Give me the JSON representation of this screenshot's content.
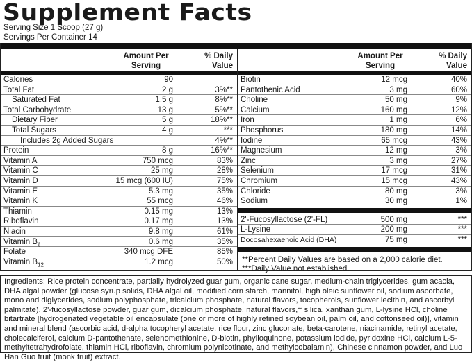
{
  "title": "Supplement Facts",
  "serving_size": "Serving Size 1 Scoop (27 g)",
  "servings_per_container": "Servings Per Container 14",
  "header": {
    "amount": "Amount Per Serving",
    "dv": "% Daily Value"
  },
  "left": [
    {
      "name": "Calories",
      "amount": "90",
      "dv": ""
    },
    {
      "name": "Total Fat",
      "amount": "2 g",
      "dv": "3%**"
    },
    {
      "name": "Saturated Fat",
      "amount": "1.5 g",
      "dv": "8%**",
      "indent": 1
    },
    {
      "name": "Total Carbohydrate",
      "amount": "13 g",
      "dv": "5%**"
    },
    {
      "name": "Dietary Fiber",
      "amount": "5 g",
      "dv": "18%**",
      "indent": 1
    },
    {
      "name": "Total Sugars",
      "amount": "4 g",
      "dv": "***",
      "indent": 1
    },
    {
      "name": "Includes 2g Added Sugars",
      "amount": "",
      "dv": "4%**",
      "indent": 2
    },
    {
      "name": "Protein",
      "amount": "8 g",
      "dv": "16%**"
    },
    {
      "name": "Vitamin A",
      "amount": "750 mcg",
      "dv": "83%"
    },
    {
      "name": "Vitamin C",
      "amount": "25 mg",
      "dv": "28%"
    },
    {
      "name": "Vitamin D",
      "amount": "15 mcg (600 IU)",
      "dv": "75%"
    },
    {
      "name": "Vitamin E",
      "amount": "5.3 mg",
      "dv": "35%"
    },
    {
      "name": "Vitamin K",
      "amount": "55 mcg",
      "dv": "46%"
    },
    {
      "name": "Thiamin",
      "amount": "0.15 mg",
      "dv": "13%"
    },
    {
      "name": "Riboflavin",
      "amount": "0.17 mg",
      "dv": "13%"
    },
    {
      "name": "Niacin",
      "amount": "9.8 mg",
      "dv": "61%"
    },
    {
      "name": "Vitamin B",
      "sub": "6",
      "amount": "0.6 mg",
      "dv": "35%"
    },
    {
      "name": "Folate",
      "amount": "340 mcg DFE",
      "dv": "85%"
    },
    {
      "name": "Vitamin B",
      "sub": "12",
      "amount": "1.2 mcg",
      "dv": "50%"
    }
  ],
  "right": [
    {
      "name": "Biotin",
      "amount": "12 mcg",
      "dv": "40%"
    },
    {
      "name": "Pantothenic Acid",
      "amount": "3 mg",
      "dv": "60%"
    },
    {
      "name": "Choline",
      "amount": "50 mg",
      "dv": "9%"
    },
    {
      "name": "Calcium",
      "amount": "160 mg",
      "dv": "12%"
    },
    {
      "name": "Iron",
      "amount": "1 mg",
      "dv": "6%"
    },
    {
      "name": "Phosphorus",
      "amount": "180 mg",
      "dv": "14%"
    },
    {
      "name": "Iodine",
      "amount": "65 mcg",
      "dv": "43%"
    },
    {
      "name": "Magnesium",
      "amount": "12 mg",
      "dv": "3%"
    },
    {
      "name": "Zinc",
      "amount": "3 mg",
      "dv": "27%"
    },
    {
      "name": "Selenium",
      "amount": "17 mcg",
      "dv": "31%"
    },
    {
      "name": "Chromium",
      "amount": "15 mcg",
      "dv": "43%"
    },
    {
      "name": "Chloride",
      "amount": "80 mg",
      "dv": "3%"
    },
    {
      "name": "Sodium",
      "amount": "30 mg",
      "dv": "1%"
    }
  ],
  "other": [
    {
      "name": "2'-Fucosyllactose (2'-FL)",
      "amount": "500 mg",
      "dv": "***"
    },
    {
      "name": "L-Lysine",
      "amount": "200 mg",
      "dv": "***"
    },
    {
      "name": "Docosahexaenoic Acid (DHA)",
      "amount": "75 mg",
      "dv": "***"
    }
  ],
  "footnotes": [
    "**Percent Daily Values are based on a 2,000 calorie diet.",
    "***Daily Value not established."
  ],
  "ingredients": "Ingredients: Rice protein concentrate, partially hydrolyzed guar gum, organic cane sugar, medium-chain triglycerides, gum acacia, DHA algal powder (glucose syrup solids, DHA algal oil, modified corn starch, mannitol, high oleic sunflower oil, sodium ascorbate, mono and diglycerides, sodium polyphosphate, tricalcium phosphate, natural flavors, tocopherols, sunflower lecithin, and ascorbyl palmitate), 2'-fucosyllactose powder, guar gum, dicalcium phosphate, natural flavors,† silica, xanthan gum, L-lysine HCl, choline bitartrate [hydrogenated vegetable oil encapsulate (one or more of highly refined soybean oil, palm oil, and cottonseed oil)], vitamin and mineral blend (ascorbic acid, d-alpha tocopheryl acetate, rice flour, zinc gluconate, beta-carotene, niacinamide, retinyl acetate, cholecalciferol, calcium D-pantothenate, selenomethionine, D-biotin, phylloquinone, potassium iodide, pyridoxine HCl, calcium L-5-methyltetrahydrofolate, thiamin HCl, riboflavin, chromium polynicotinate, and methylcobalamin), Chinese cinnamon powder, and Luo Han Guo fruit (monk fruit) extract."
}
